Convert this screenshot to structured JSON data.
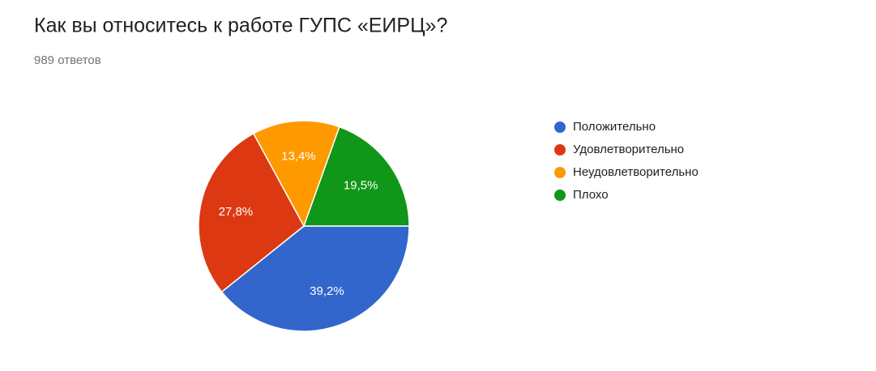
{
  "chart_data": {
    "type": "pie",
    "title": "Как вы относитесь к работе ГУПС «ЕИРЦ»?",
    "subtitle": "989 ответов",
    "categories": [
      "Положительно",
      "Удовлетворительно",
      "Неудовлетворительно",
      "Плохо"
    ],
    "values": [
      39.2,
      27.8,
      13.4,
      19.5
    ],
    "value_labels": [
      "39,2%",
      "27,8%",
      "13,4%",
      "19,5%"
    ],
    "colors": [
      "#3366cc",
      "#dc3912",
      "#ff9900",
      "#109618"
    ],
    "legend": "right"
  }
}
